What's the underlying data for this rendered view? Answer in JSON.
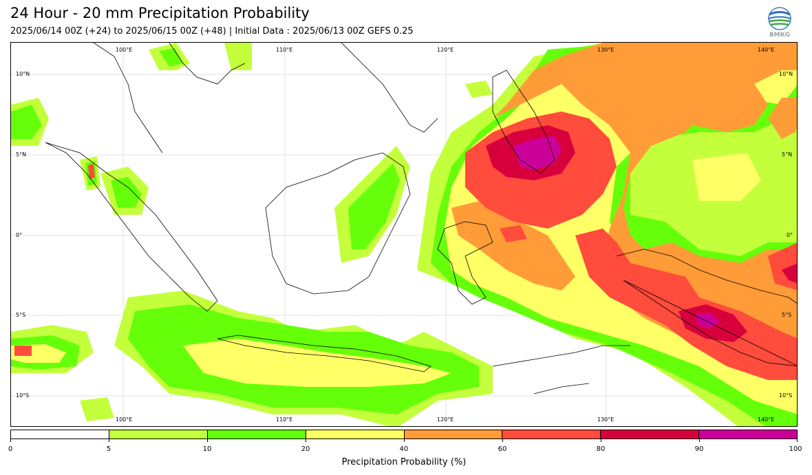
{
  "header": {
    "title": "24 Hour - 20 mm Precipitation Probability",
    "subtitle": "2025/06/14 00Z (+24) to 2025/06/15 00Z (+48) | Initial Data : 2025/06/13 00Z GEFS 0.25",
    "logo_text": "BMKG"
  },
  "map": {
    "top_labels": [
      "100°E",
      "110°E",
      "120°E",
      "130°E",
      "140°E"
    ],
    "bottom_labels": [
      "100°E",
      "110°E",
      "120°E",
      "130°E",
      "140°E"
    ],
    "left_labels": [
      "10°N",
      "5°N",
      "0°",
      "5°S",
      "10°S"
    ],
    "right_labels": [
      "10°N",
      "5°N",
      "0°",
      "5°S",
      "10°S"
    ]
  },
  "colorbar": {
    "ticks": [
      "0",
      "5",
      "10",
      "20",
      "40",
      "60",
      "80",
      "90",
      "100"
    ],
    "colors": [
      "#ffffff",
      "#c4ff3c",
      "#66ff0a",
      "#ffff66",
      "#ff9c38",
      "#ff4c3c",
      "#d8003c",
      "#cc0099"
    ],
    "label": "Precipitation Probability (%)"
  }
}
